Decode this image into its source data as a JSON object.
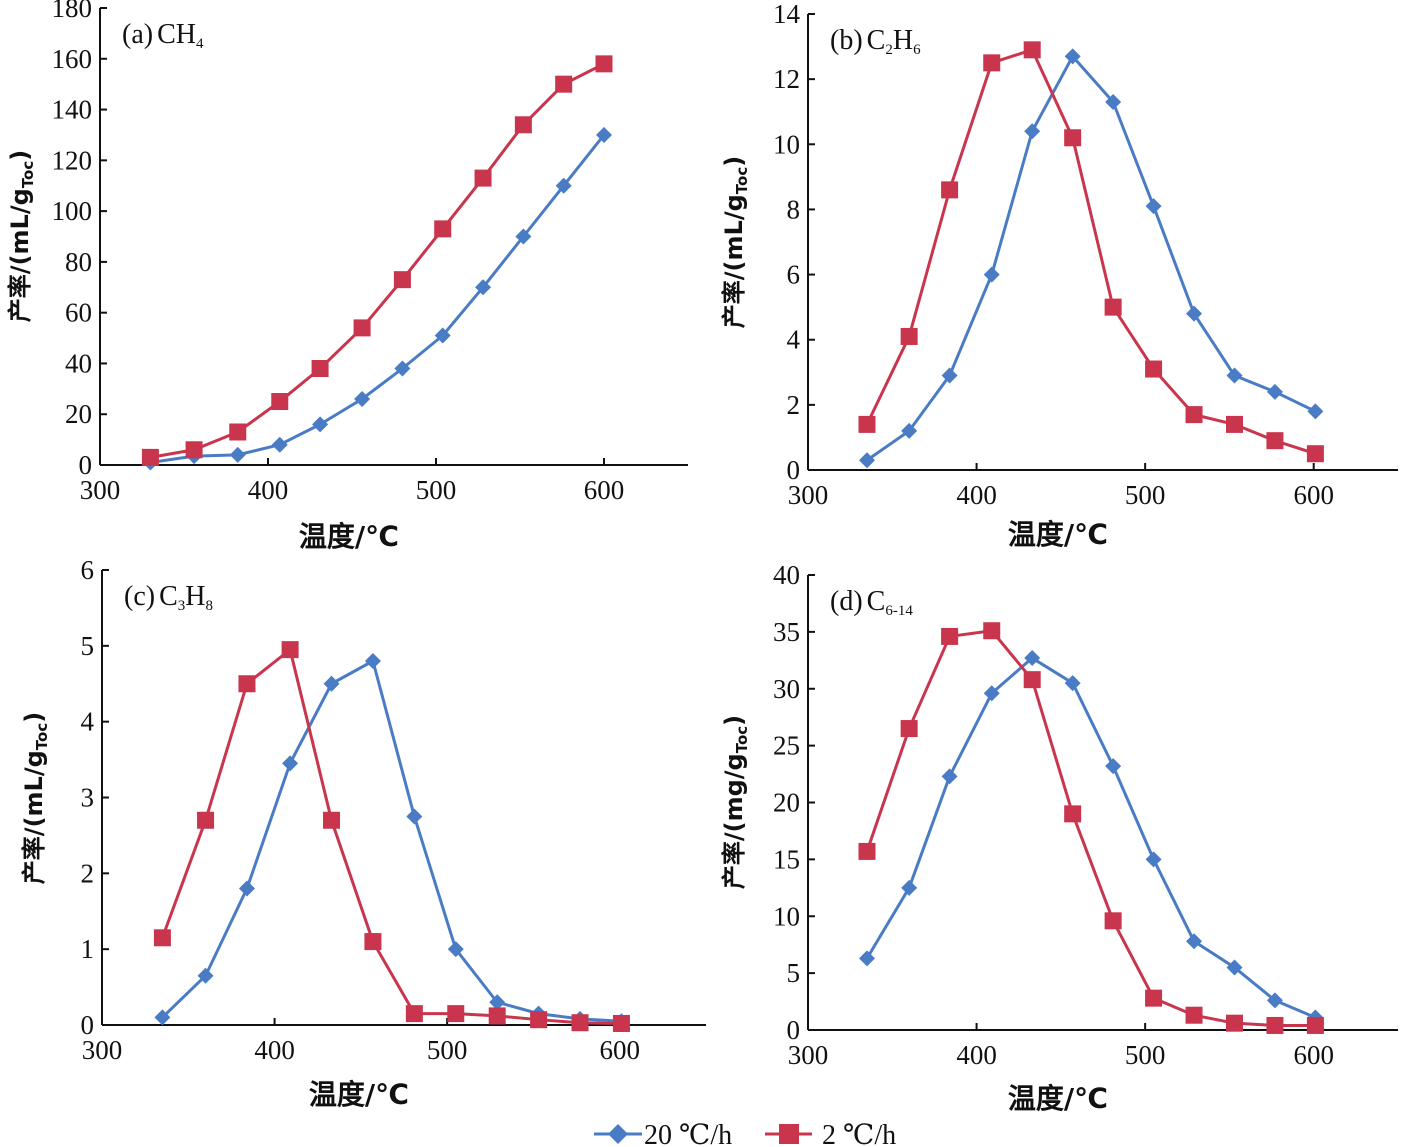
{
  "colors": {
    "series_blue": "#4a7cc5",
    "series_red": "#c9354c",
    "axis": "#111111"
  },
  "legend": {
    "placement": "bottom-center"
  },
  "chart_data": [
    {
      "type": "line",
      "panel_label": "(a)",
      "title_main": "CH",
      "title_sub": "4",
      "ylabel_main": "产率/(mL/g",
      "ylabel_sub": "Toc",
      "ylabel_end": ")",
      "xlabel": "温度/℃",
      "xlim": [
        300,
        650
      ],
      "ylim": [
        0,
        180
      ],
      "xticks": [
        300,
        400,
        500,
        600
      ],
      "yticks": [
        0,
        20,
        40,
        60,
        80,
        100,
        120,
        140,
        160,
        180
      ],
      "x_blue": [
        330,
        356,
        382,
        407,
        431,
        456,
        480,
        504,
        528,
        552,
        576,
        600
      ],
      "x_red": [
        330,
        356,
        382,
        407,
        431,
        456,
        480,
        504,
        528,
        552,
        576,
        600
      ],
      "series": [
        {
          "name": "20 ℃/h",
          "color": "#4a7cc5",
          "marker": "diamond",
          "values": [
            1,
            3.5,
            4,
            8,
            16,
            26,
            38,
            51,
            70,
            90,
            110,
            130
          ]
        },
        {
          "name": "2 ℃/h",
          "color": "#c9354c",
          "marker": "square",
          "values": [
            3,
            6,
            13,
            25,
            38,
            54,
            73,
            93,
            113,
            134,
            150,
            158
          ]
        }
      ]
    },
    {
      "type": "line",
      "panel_label": "(b)",
      "title_main": "C",
      "title_sub": "2",
      "title_main2": "H",
      "title_sub2": "6",
      "ylabel_main": "产率/(mL/g",
      "ylabel_sub": "Toc",
      "ylabel_end": ")",
      "xlabel": "温度/℃",
      "xlim": [
        300,
        650
      ],
      "ylim": [
        0,
        14
      ],
      "xticks": [
        300,
        400,
        500,
        600
      ],
      "yticks": [
        0,
        2,
        4,
        6,
        8,
        10,
        12,
        14
      ],
      "x_blue": [
        335,
        360,
        384,
        409,
        433,
        457,
        481,
        505,
        529,
        553,
        577,
        601
      ],
      "x_red": [
        335,
        360,
        384,
        409,
        433,
        457,
        481,
        505,
        529,
        553,
        577,
        601
      ],
      "series": [
        {
          "name": "20 ℃/h",
          "color": "#4a7cc5",
          "marker": "diamond",
          "values": [
            0.3,
            1.2,
            2.9,
            6.0,
            10.4,
            12.7,
            11.3,
            8.1,
            4.8,
            2.9,
            2.4,
            1.8
          ]
        },
        {
          "name": "2 ℃/h",
          "color": "#c9354c",
          "marker": "square",
          "values": [
            1.4,
            4.1,
            8.6,
            12.5,
            12.9,
            10.2,
            5.0,
            3.1,
            1.7,
            1.4,
            0.9,
            0.5
          ]
        }
      ]
    },
    {
      "type": "line",
      "panel_label": "(c)",
      "title_main": "C",
      "title_sub": "3",
      "title_main2": "H",
      "title_sub2": "8",
      "ylabel_main": "产率/(mL/g",
      "ylabel_sub": "Toc",
      "ylabel_end": ")",
      "xlabel": "温度/℃",
      "xlim": [
        300,
        650
      ],
      "ylim": [
        0,
        6
      ],
      "xticks": [
        300,
        400,
        500,
        600
      ],
      "yticks": [
        0,
        1,
        2,
        3,
        4,
        5,
        6
      ],
      "x_blue": [
        335,
        360,
        384,
        409,
        433,
        457,
        481,
        505,
        529,
        553,
        577,
        601
      ],
      "x_red": [
        335,
        360,
        384,
        409,
        433,
        457,
        481,
        505,
        529,
        553,
        577,
        601
      ],
      "series": [
        {
          "name": "20 ℃/h",
          "color": "#4a7cc5",
          "marker": "diamond",
          "values": [
            0.1,
            0.65,
            1.8,
            3.45,
            4.5,
            4.8,
            2.75,
            1.0,
            0.3,
            0.15,
            0.08,
            0.05
          ]
        },
        {
          "name": "2 ℃/h",
          "color": "#c9354c",
          "marker": "square",
          "values": [
            1.15,
            2.7,
            4.5,
            4.95,
            2.7,
            1.1,
            0.15,
            0.15,
            0.12,
            0.07,
            0.03,
            0.02
          ]
        }
      ]
    },
    {
      "type": "line",
      "panel_label": "(d)",
      "title_main": "C",
      "title_sub": "6-14",
      "ylabel_main": "产率/(mg/g",
      "ylabel_sub": "Toc",
      "ylabel_end": ")",
      "xlabel": "温度/℃",
      "xlim": [
        300,
        650
      ],
      "ylim": [
        0,
        40
      ],
      "xticks": [
        300,
        400,
        500,
        600
      ],
      "yticks": [
        0,
        5,
        10,
        15,
        20,
        25,
        30,
        35,
        40
      ],
      "x_blue": [
        335,
        360,
        384,
        409,
        433,
        457,
        481,
        505,
        529,
        553,
        577,
        601
      ],
      "x_red": [
        335,
        360,
        384,
        409,
        433,
        457,
        481,
        505,
        529,
        553,
        577,
        601
      ],
      "series": [
        {
          "name": "20 ℃/h",
          "color": "#4a7cc5",
          "marker": "diamond",
          "values": [
            6.3,
            12.5,
            22.3,
            29.6,
            32.7,
            30.5,
            23.2,
            15.0,
            7.8,
            5.5,
            2.6,
            1.1
          ]
        },
        {
          "name": "2 ℃/h",
          "color": "#c9354c",
          "marker": "square",
          "values": [
            15.7,
            26.5,
            34.6,
            35.1,
            30.8,
            19.0,
            9.6,
            2.8,
            1.3,
            0.6,
            0.4,
            0.4
          ]
        }
      ]
    }
  ]
}
